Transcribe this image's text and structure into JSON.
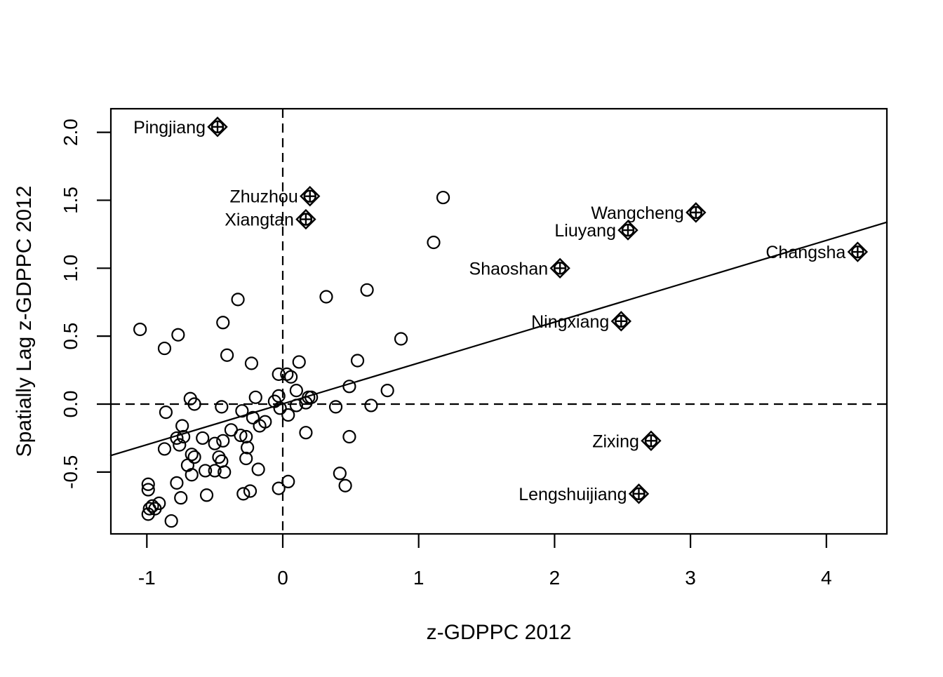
{
  "figure": {
    "background_color": "#ffffff",
    "foreground_color": "#000000"
  },
  "chart_data": {
    "type": "scatter",
    "title": "",
    "xlabel": "z-GDPPC 2012",
    "ylabel": "Spatially Lag z-GDPPC 2012",
    "xlim": [
      -1.27,
      4.45
    ],
    "ylim": [
      -0.96,
      2.18
    ],
    "grid": "off",
    "x_ticks": {
      "values": [
        -1,
        0,
        1,
        2,
        3,
        4
      ],
      "labels": [
        "-1",
        "0",
        "1",
        "2",
        "3",
        "4"
      ]
    },
    "y_ticks": {
      "values": [
        -0.5,
        0.0,
        0.5,
        1.0,
        1.5,
        2.0
      ],
      "labels": [
        "-0.5",
        "0.0",
        "0.5",
        "1.0",
        "1.5",
        "2.0"
      ]
    },
    "mean_lines": {
      "vertical_x": 0,
      "horizontal_y": 0,
      "style": "dashed"
    },
    "regression_line": {
      "x1": -1.27,
      "y1": -0.38,
      "x2": 4.45,
      "y2": 1.34,
      "slope": 0.3,
      "intercept": 0.0
    },
    "marker": "open-circle",
    "influential_marker": "diamond-circle-plus",
    "points": [
      [
        -1.05,
        0.55
      ],
      [
        -0.87,
        0.41
      ],
      [
        -0.77,
        0.51
      ],
      [
        -0.44,
        0.6
      ],
      [
        -0.33,
        0.77
      ],
      [
        -0.41,
        0.36
      ],
      [
        -0.23,
        0.3
      ],
      [
        0.12,
        0.31
      ],
      [
        0.32,
        0.79
      ],
      [
        0.62,
        0.84
      ],
      [
        0.87,
        0.48
      ],
      [
        1.18,
        1.52
      ],
      [
        1.11,
        1.19
      ],
      [
        0.55,
        0.32
      ],
      [
        0.49,
        0.13
      ],
      [
        0.19,
        0.05
      ],
      [
        0.77,
        0.1
      ],
      [
        0.65,
        -0.01
      ],
      [
        0.39,
        -0.02
      ],
      [
        0.49,
        -0.24
      ],
      [
        0.42,
        -0.51
      ],
      [
        0.46,
        -0.6
      ],
      [
        -0.03,
        0.22
      ],
      [
        0.03,
        0.22
      ],
      [
        0.06,
        0.2
      ],
      [
        0.1,
        0.1
      ],
      [
        -0.03,
        0.06
      ],
      [
        -0.06,
        0.02
      ],
      [
        -0.2,
        0.05
      ],
      [
        -0.68,
        0.04
      ],
      [
        -0.65,
        0.0
      ],
      [
        -0.86,
        -0.06
      ],
      [
        -0.45,
        -0.02
      ],
      [
        -0.3,
        -0.05
      ],
      [
        0.1,
        -0.01
      ],
      [
        0.17,
        0.01
      ],
      [
        0.21,
        0.05
      ],
      [
        -0.02,
        -0.03
      ],
      [
        0.04,
        -0.08
      ],
      [
        -0.22,
        -0.1
      ],
      [
        -0.17,
        -0.16
      ],
      [
        -0.13,
        -0.13
      ],
      [
        0.17,
        -0.21
      ],
      [
        -0.74,
        -0.16
      ],
      [
        -0.78,
        -0.25
      ],
      [
        -0.73,
        -0.24
      ],
      [
        -0.76,
        -0.3
      ],
      [
        -0.59,
        -0.25
      ],
      [
        -0.87,
        -0.33
      ],
      [
        -0.5,
        -0.29
      ],
      [
        -0.44,
        -0.27
      ],
      [
        -0.38,
        -0.19
      ],
      [
        -0.31,
        -0.23
      ],
      [
        -0.27,
        -0.24
      ],
      [
        -0.26,
        -0.32
      ],
      [
        -0.27,
        -0.4
      ],
      [
        -0.67,
        -0.37
      ],
      [
        -0.65,
        -0.39
      ],
      [
        -0.7,
        -0.45
      ],
      [
        -0.67,
        -0.52
      ],
      [
        -0.57,
        -0.49
      ],
      [
        -0.5,
        -0.49
      ],
      [
        -0.43,
        -0.5
      ],
      [
        -0.47,
        -0.39
      ],
      [
        -0.45,
        -0.42
      ],
      [
        -0.18,
        -0.48
      ],
      [
        -0.99,
        -0.59
      ],
      [
        -0.99,
        -0.63
      ],
      [
        -0.78,
        -0.58
      ],
      [
        -0.75,
        -0.69
      ],
      [
        -0.56,
        -0.67
      ],
      [
        -0.29,
        -0.66
      ],
      [
        -0.24,
        -0.64
      ],
      [
        -0.03,
        -0.62
      ],
      [
        0.04,
        -0.57
      ],
      [
        -0.96,
        -0.75
      ],
      [
        -0.91,
        -0.73
      ],
      [
        -0.98,
        -0.77
      ],
      [
        -0.94,
        -0.77
      ],
      [
        -0.99,
        -0.81
      ],
      [
        -0.82,
        -0.86
      ]
    ],
    "influential_points": [
      {
        "name": "Pingjiang",
        "x": -0.48,
        "y": 2.04
      },
      {
        "name": "Zhuzhou",
        "x": 0.2,
        "y": 1.53
      },
      {
        "name": "Xiangtan",
        "x": 0.17,
        "y": 1.36
      },
      {
        "name": "Wangcheng",
        "x": 3.04,
        "y": 1.41
      },
      {
        "name": "Liuyang",
        "x": 2.54,
        "y": 1.28
      },
      {
        "name": "Changsha",
        "x": 4.23,
        "y": 1.12
      },
      {
        "name": "Shaoshan",
        "x": 2.04,
        "y": 1.0
      },
      {
        "name": "Ningxiang",
        "x": 2.49,
        "y": 0.61
      },
      {
        "name": "Zixing",
        "x": 2.71,
        "y": -0.27
      },
      {
        "name": "Lengshuijiang",
        "x": 2.62,
        "y": -0.66
      }
    ]
  }
}
